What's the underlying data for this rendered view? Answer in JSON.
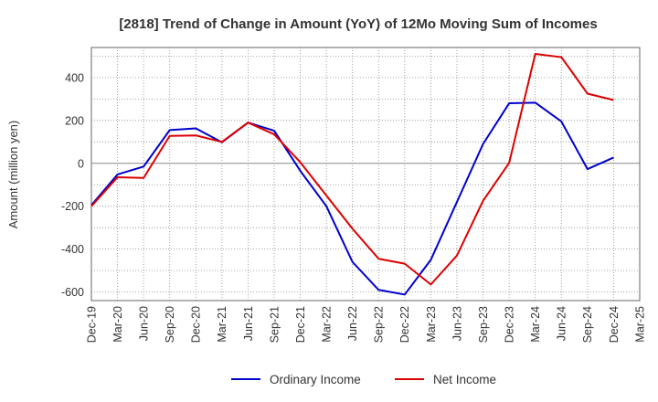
{
  "chart_data": {
    "type": "line",
    "title": "[2818]  Trend of Change in Amount (YoY) of 12Mo Moving Sum of Incomes",
    "xlabel": "",
    "ylabel": "Amount (million yen)",
    "categories": [
      "Dec-19",
      "Mar-20",
      "Jun-20",
      "Sep-20",
      "Dec-20",
      "Mar-21",
      "Jun-21",
      "Sep-21",
      "Dec-21",
      "Mar-22",
      "Jun-22",
      "Sep-22",
      "Dec-22",
      "Mar-23",
      "Jun-23",
      "Sep-23",
      "Dec-23",
      "Mar-24",
      "Jun-24",
      "Sep-24",
      "Dec-24",
      "Mar-25"
    ],
    "ylim": [
      -640,
      540
    ],
    "yticks": [
      400,
      200,
      0,
      -200,
      -400,
      -600
    ],
    "ytick_labels": [
      "400",
      "200",
      "0",
      "-200",
      "-400",
      "-600"
    ],
    "grid": true,
    "legend_position": "bottom",
    "series": [
      {
        "name": "Ordinary Income",
        "color": "#0000cc",
        "values": [
          -195,
          -52,
          -15,
          155,
          163,
          98,
          190,
          152,
          -35,
          -200,
          -460,
          -590,
          -612,
          -450,
          -180,
          90,
          280,
          283,
          195,
          -27,
          27,
          null
        ]
      },
      {
        "name": "Net Income",
        "color": "#dd0000",
        "values": [
          -200,
          -65,
          -68,
          128,
          130,
          100,
          190,
          135,
          5,
          -150,
          -305,
          -445,
          -468,
          -565,
          -430,
          -175,
          2,
          510,
          495,
          325,
          295,
          null
        ]
      }
    ]
  }
}
